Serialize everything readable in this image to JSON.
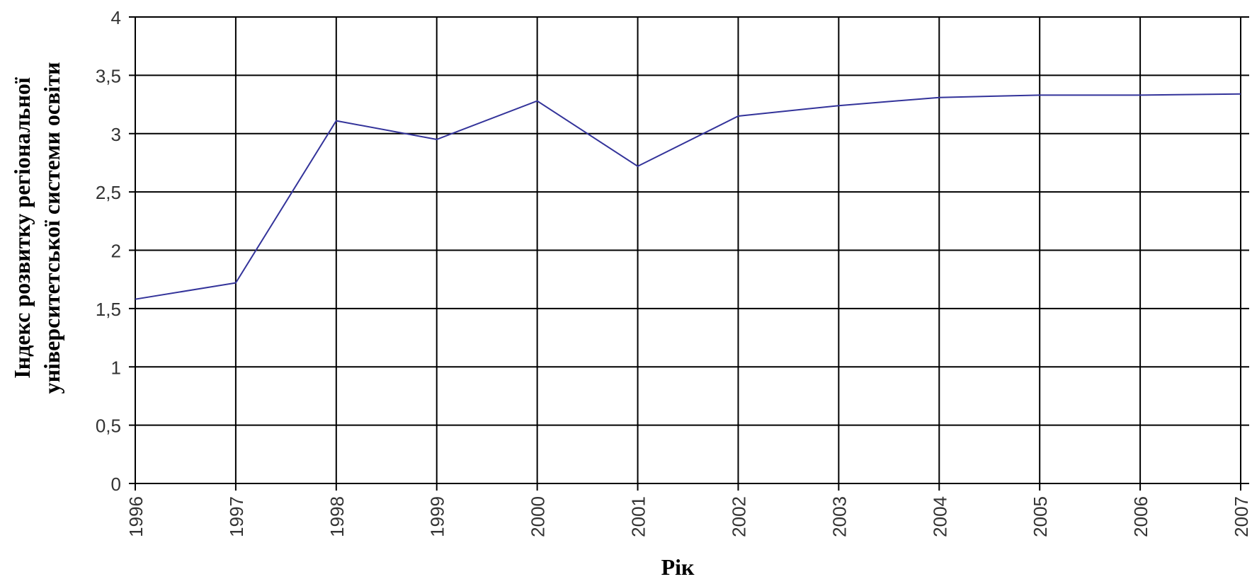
{
  "chart_data": {
    "type": "line",
    "title": "",
    "xlabel": "Рік",
    "ylabel_lines": [
      "Індекс розвитку регіональної",
      "університетської системи освіти"
    ],
    "categories": [
      "1996",
      "1997",
      "1998",
      "1999",
      "2000",
      "2001",
      "2002",
      "2003",
      "2004",
      "2005",
      "2006",
      "2007"
    ],
    "y_tick_labels": [
      "0",
      "0,5",
      "1",
      "1,5",
      "2",
      "2,5",
      "3",
      "3,5",
      "4"
    ],
    "ylim": [
      0,
      4
    ],
    "grid": true,
    "series": [
      {
        "values": [
          1.58,
          1.72,
          3.11,
          2.95,
          3.28,
          2.72,
          3.15,
          3.24,
          3.31,
          3.33,
          3.33,
          3.34
        ],
        "color": "#33339a"
      }
    ],
    "colors": {
      "grid": "#000000",
      "tick_text": "#333333",
      "background": "#ffffff"
    }
  }
}
